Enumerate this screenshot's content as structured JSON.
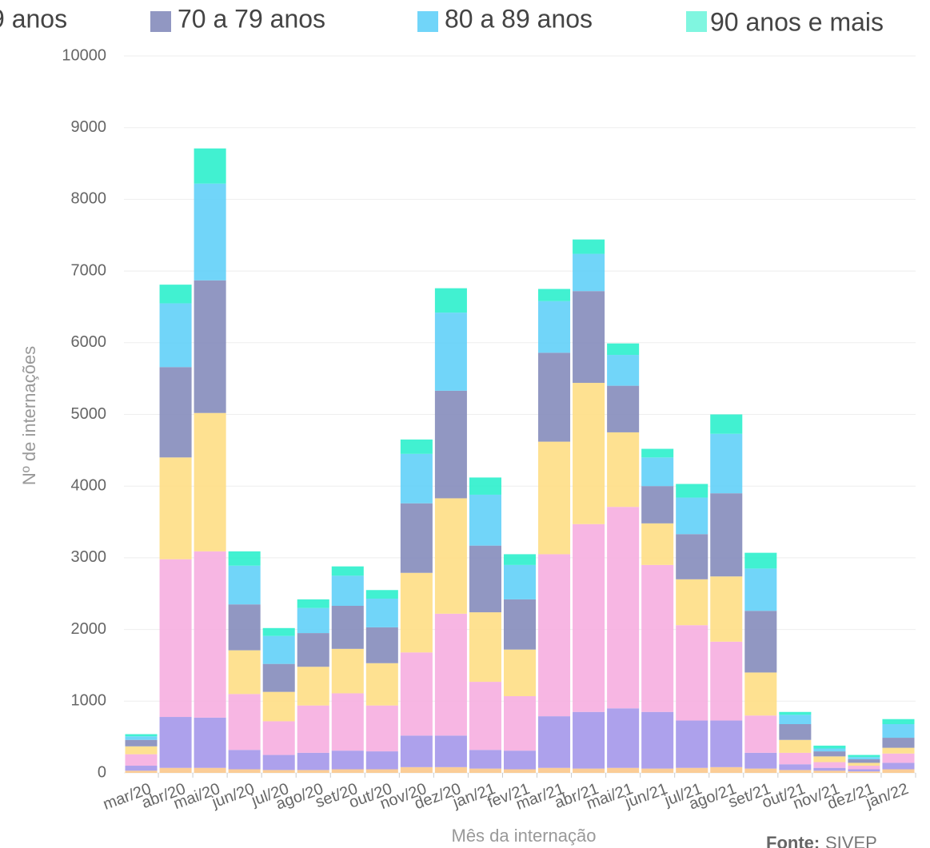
{
  "chart_data": {
    "type": "stacked_bar",
    "x_label": "Mês da internação",
    "y_label": "Nº de internações",
    "source_label": "Fonte:",
    "source": "SIVEP",
    "categories": [
      "mar/20",
      "abr/20",
      "mai/20",
      "jun/20",
      "jul/20",
      "ago/20",
      "set/20",
      "out/20",
      "nov/20",
      "dez/20",
      "jan/21",
      "fev/21",
      "mar/21",
      "abr/21",
      "mai/21",
      "jun/21",
      "jul/21",
      "ago/21",
      "set/21",
      "out/21",
      "nov/21",
      "dez/21",
      "jan/22"
    ],
    "ylim": [
      0,
      10000
    ],
    "yticks": [
      0,
      1000,
      2000,
      3000,
      4000,
      5000,
      6000,
      7000,
      8000,
      9000,
      10000
    ],
    "grid": true,
    "series": [
      {
        "color": "#fbc88c",
        "values": [
          30,
          70,
          70,
          50,
          40,
          40,
          50,
          50,
          80,
          80,
          60,
          50,
          70,
          60,
          70,
          60,
          70,
          80,
          60,
          40,
          30,
          20,
          50
        ]
      },
      {
        "color": "#a497ea",
        "values": [
          70,
          710,
          700,
          270,
          210,
          240,
          260,
          250,
          440,
          440,
          260,
          260,
          720,
          790,
          830,
          790,
          660,
          650,
          220,
          80,
          40,
          30,
          90
        ]
      },
      {
        "color": "#f6aee0",
        "values": [
          160,
          2200,
          2320,
          780,
          470,
          660,
          800,
          640,
          1160,
          1700,
          950,
          760,
          2260,
          2620,
          2810,
          2050,
          1330,
          1100,
          520,
          160,
          80,
          50,
          130
        ]
      },
      {
        "name": "9 anos",
        "color": "#fede85",
        "values": [
          110,
          1420,
          1930,
          610,
          410,
          540,
          620,
          590,
          1110,
          1610,
          970,
          650,
          1570,
          1970,
          1040,
          580,
          640,
          910,
          600,
          180,
          80,
          40,
          80
        ]
      },
      {
        "name": "70 a 79 anos",
        "color": "#858cbb",
        "values": [
          90,
          1260,
          1850,
          640,
          390,
          470,
          600,
          500,
          970,
          1500,
          930,
          700,
          1240,
          1280,
          650,
          520,
          630,
          1160,
          860,
          220,
          70,
          50,
          140
        ]
      },
      {
        "name": "80 a 89 anos",
        "color": "#62d0f8",
        "values": [
          50,
          890,
          1350,
          540,
          390,
          350,
          420,
          400,
          690,
          1090,
          710,
          480,
          720,
          520,
          430,
          400,
          510,
          830,
          590,
          130,
          40,
          30,
          190
        ]
      },
      {
        "name": "90 anos e mais",
        "color": "#2cf0cc",
        "values": [
          30,
          260,
          490,
          200,
          110,
          120,
          130,
          120,
          200,
          340,
          240,
          150,
          170,
          200,
          160,
          120,
          190,
          270,
          220,
          40,
          40,
          30,
          70
        ]
      }
    ]
  }
}
